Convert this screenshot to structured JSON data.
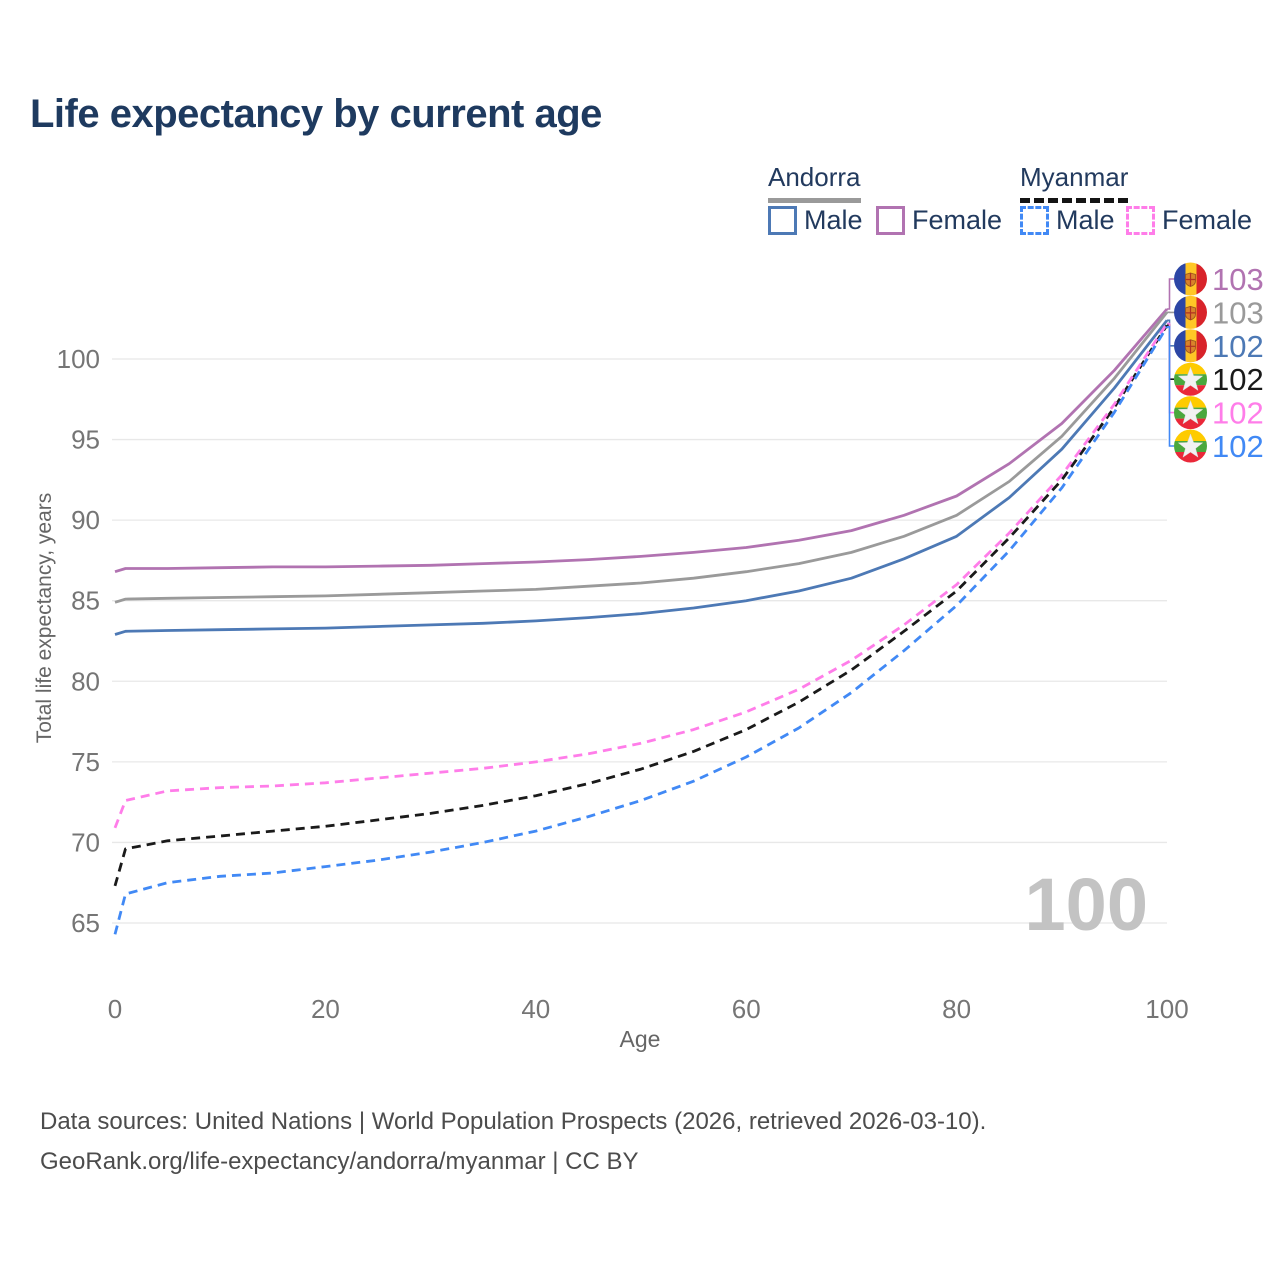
{
  "title": "Life expectancy by current age",
  "legend": {
    "groups": [
      {
        "name": "Andorra",
        "line_style": "solid",
        "underline_color": "#9a9a9a",
        "items": [
          {
            "label": "Male",
            "color": "#4d79b5",
            "dashed": false
          },
          {
            "label": "Female",
            "color": "#b173b1",
            "dashed": false
          }
        ]
      },
      {
        "name": "Myanmar",
        "line_style": "dashed",
        "underline_color": "#141414",
        "items": [
          {
            "label": "Male",
            "color": "#4189f5",
            "dashed": true
          },
          {
            "label": "Female",
            "color": "#ff7de9",
            "dashed": true
          }
        ]
      }
    ]
  },
  "chart_data": {
    "type": "line",
    "title": "Life expectancy by current age",
    "xlabel": "Age",
    "ylabel": "Total life expectancy, years",
    "xlim": [
      0,
      100
    ],
    "ylim": [
      63,
      104
    ],
    "x_ticks": [
      0,
      20,
      40,
      60,
      80,
      100
    ],
    "y_ticks": [
      65,
      70,
      75,
      80,
      85,
      90,
      95,
      100
    ],
    "grid": "horizontal",
    "legend_position": "top-right",
    "x": [
      0,
      1,
      5,
      10,
      15,
      20,
      25,
      30,
      35,
      40,
      45,
      50,
      55,
      60,
      65,
      70,
      75,
      80,
      85,
      90,
      95,
      100
    ],
    "series": [
      {
        "name": "Andorra Female",
        "country": "Andorra",
        "sex": "Female",
        "color": "#b173b1",
        "dashed": false,
        "flag": "andorra",
        "end_label": "103",
        "label_slot": 0,
        "values": [
          86.8,
          87.0,
          87.0,
          87.05,
          87.1,
          87.1,
          87.15,
          87.2,
          87.3,
          87.4,
          87.55,
          87.75,
          88.0,
          88.3,
          88.75,
          89.35,
          90.3,
          91.5,
          93.5,
          96.0,
          99.3,
          103.1
        ]
      },
      {
        "name": "Andorra Both sexes",
        "country": "Andorra",
        "sex": "Both",
        "color": "#9a9a9a",
        "dashed": false,
        "flag": "andorra",
        "end_label": "103",
        "label_slot": 1,
        "values": [
          84.9,
          85.1,
          85.15,
          85.2,
          85.25,
          85.3,
          85.4,
          85.5,
          85.6,
          85.7,
          85.9,
          86.1,
          86.4,
          86.8,
          87.3,
          88.0,
          89.0,
          90.3,
          92.4,
          95.2,
          98.8,
          102.9
        ]
      },
      {
        "name": "Andorra Male",
        "country": "Andorra",
        "sex": "Male",
        "color": "#4d79b5",
        "dashed": false,
        "flag": "andorra",
        "end_label": "102",
        "label_slot": 2,
        "values": [
          82.9,
          83.1,
          83.15,
          83.2,
          83.25,
          83.3,
          83.4,
          83.5,
          83.6,
          83.75,
          83.95,
          84.2,
          84.55,
          85.0,
          85.6,
          86.4,
          87.6,
          89.0,
          91.4,
          94.4,
          98.2,
          102.4
        ]
      },
      {
        "name": "Myanmar Both sexes",
        "country": "Myanmar",
        "sex": "Both",
        "color": "#1a1a1a",
        "dashed": true,
        "flag": "myanmar",
        "end_label": "102",
        "label_slot": 3,
        "values": [
          67.3,
          69.6,
          70.1,
          70.4,
          70.7,
          71.0,
          71.4,
          71.8,
          72.3,
          72.9,
          73.65,
          74.55,
          75.65,
          77.0,
          78.7,
          80.7,
          83.1,
          85.6,
          88.9,
          92.5,
          97.0,
          102.1
        ]
      },
      {
        "name": "Myanmar Female",
        "country": "Myanmar",
        "sex": "Female",
        "color": "#ff7de9",
        "dashed": true,
        "flag": "myanmar",
        "end_label": "102",
        "label_slot": 4,
        "values": [
          70.9,
          72.6,
          73.2,
          73.4,
          73.5,
          73.7,
          74.0,
          74.3,
          74.6,
          75.0,
          75.5,
          76.15,
          77.0,
          78.1,
          79.5,
          81.3,
          83.5,
          86.0,
          89.2,
          92.8,
          97.2,
          102.2
        ]
      },
      {
        "name": "Myanmar Male",
        "country": "Myanmar",
        "sex": "Male",
        "color": "#4189f5",
        "dashed": true,
        "flag": "myanmar",
        "end_label": "102",
        "label_slot": 5,
        "values": [
          64.3,
          66.8,
          67.5,
          67.9,
          68.1,
          68.5,
          68.9,
          69.4,
          70.0,
          70.7,
          71.6,
          72.6,
          73.8,
          75.3,
          77.1,
          79.3,
          81.9,
          84.7,
          88.1,
          92.0,
          96.7,
          102.0
        ]
      }
    ]
  },
  "annotations": {
    "age_watermark": "100"
  },
  "colors": {
    "title": "#1e3a5f",
    "tick_label": "#757575",
    "gridline": "#e8e8e8",
    "watermark": "#c3c3c3",
    "footer": "#4c4c4c",
    "andorra_flag": {
      "blue": "#2c46a5",
      "yellow": "#ffc726",
      "red": "#d8232a",
      "crest": "#d9822b"
    },
    "myanmar_flag": {
      "yellow": "#fecb00",
      "green": "#4aa83d",
      "red": "#ea2839",
      "star": "#f2f2f2"
    }
  },
  "footer": {
    "line1": "Data sources: United Nations | World Population Prospects (2026, retrieved 2026-03-10).",
    "line2": "GeoRank.org/life-expectancy/andorra/myanmar | CC BY"
  }
}
